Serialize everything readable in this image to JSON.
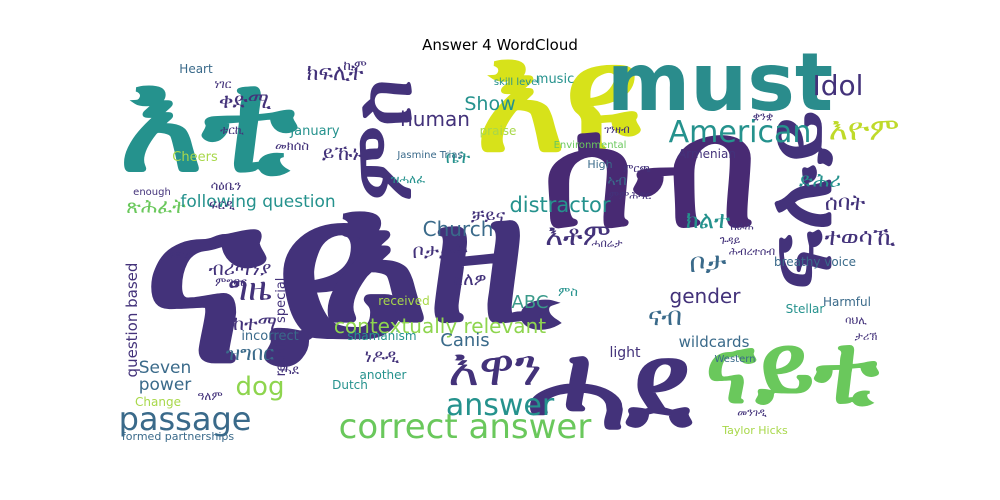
{
  "chart_data": {
    "type": "wordcloud",
    "title": "Answer 4 WordCloud",
    "words": [
      {
        "text": "ናይ",
        "rank": 1,
        "color": "#43327a"
      },
      {
        "text": "እዩ",
        "rank": 2,
        "color": "#d7e21a"
      },
      {
        "text": "እቲ",
        "rank": 3,
        "color": "#25928d"
      },
      {
        "text": "ሰብ",
        "rank": 4,
        "color": "#482a73"
      },
      {
        "text": "እዚ",
        "rank": 5,
        "color": "#43327a"
      },
      {
        "text": "ሓደ",
        "rank": 6,
        "color": "#43327a"
      },
      {
        "text": "ናይቲ",
        "rank": 7,
        "color": "#6ac85c"
      },
      {
        "text": "ምስ",
        "rank": 8,
        "color": "#43327a"
      },
      {
        "text": "must",
        "rank": 9,
        "color": "#2a8c8c"
      },
      {
        "text": "ፍሉይ",
        "rank": 10,
        "color": "#43327a"
      },
      {
        "text": "correct answer",
        "rank": 11,
        "color": "#6ac85c"
      },
      {
        "text": "American",
        "rank": 12,
        "color": "#25928d"
      },
      {
        "text": "እዋን",
        "rank": 13,
        "color": "#43327a"
      },
      {
        "text": "answer",
        "rank": 14,
        "color": "#25928d"
      },
      {
        "text": "passage",
        "rank": 15,
        "color": "#3a6a8a"
      },
      {
        "text": "Idol",
        "rank": 16,
        "color": "#43327a"
      },
      {
        "text": "እዮም",
        "rank": 17,
        "color": "#bfda2a"
      },
      {
        "text": "ግዜ",
        "rank": 18,
        "color": "#43327a"
      },
      {
        "text": "dog",
        "rank": 19,
        "color": "#8ed54e"
      },
      {
        "text": "እቶም",
        "rank": 20,
        "color": "#43327a"
      },
      {
        "text": "contextually relevant",
        "rank": 21,
        "color": "#8ed54e"
      },
      {
        "text": "Church",
        "rank": 22,
        "color": "#3a6a8a"
      },
      {
        "text": "human",
        "rank": 23,
        "color": "#43327a"
      },
      {
        "text": "distractor",
        "rank": 24,
        "color": "#25928d"
      },
      {
        "text": "gender",
        "rank": 25,
        "color": "#43327a"
      },
      {
        "text": "Seven",
        "rank": 26,
        "color": "#3a6a8a"
      },
      {
        "text": "power",
        "rank": 27,
        "color": "#3a6a8a"
      },
      {
        "text": "Show",
        "rank": 28,
        "color": "#25928d"
      },
      {
        "text": "ABC",
        "rank": 29,
        "color": "#3a9a8a"
      },
      {
        "text": "Canis",
        "rank": 30,
        "color": "#3a6a8a"
      },
      {
        "text": "ቀድሚ",
        "rank": 31,
        "color": "#43327a"
      },
      {
        "text": "ክፍሊት",
        "rank": 32,
        "color": "#43327a"
      },
      {
        "text": "ኪም",
        "rank": 33,
        "color": "#43327a"
      },
      {
        "text": "ይኹኑ",
        "rank": 34,
        "color": "#43327a"
      },
      {
        "text": "ቤት",
        "rank": 35,
        "color": "#25928d"
      },
      {
        "text": "ቻይና",
        "rank": 36,
        "color": "#43327a"
      },
      {
        "text": "ቦታታት",
        "rank": 37,
        "color": "#43327a"
      },
      {
        "text": "ዘለዎ",
        "rank": 38,
        "color": "#43327a"
      },
      {
        "text": "ብሪጣንያ",
        "rank": 39,
        "color": "#43327a"
      },
      {
        "text": "ከተማ",
        "rank": 40,
        "color": "#43327a"
      },
      {
        "text": "ዝግበር",
        "rank": 41,
        "color": "#3a6a8a"
      },
      {
        "text": "ነዶዲ",
        "rank": 42,
        "color": "#43327a"
      },
      {
        "text": "ቦታ",
        "rank": 43,
        "color": "#3a6a8a"
      },
      {
        "text": "ናብ",
        "rank": 44,
        "color": "#3a6a8a"
      },
      {
        "text": "ክልተ",
        "rank": 45,
        "color": "#25928d"
      },
      {
        "text": "ተወሳኺ",
        "rank": 46,
        "color": "#43327a"
      },
      {
        "text": "ሰባት",
        "rank": 47,
        "color": "#43327a"
      },
      {
        "text": "ድሕሪ",
        "rank": 48,
        "color": "#25928d"
      },
      {
        "text": "ጽሕፈት",
        "rank": 49,
        "color": "#6ac85c"
      },
      {
        "text": "following question",
        "rank": 50,
        "color": "#25928d"
      },
      {
        "text": "January",
        "rank": 51,
        "color": "#25928d"
      },
      {
        "text": "question based",
        "rank": 52,
        "color": "#43327a"
      },
      {
        "text": "reunion special",
        "rank": 53,
        "color": "#43327a"
      },
      {
        "text": "incorrect",
        "rank": 54,
        "color": "#3a6a8a"
      },
      {
        "text": "shamanism",
        "rank": 55,
        "color": "#25928d"
      },
      {
        "text": "received",
        "rank": 56,
        "color": "#a8d84a"
      },
      {
        "text": "Dutch",
        "rank": 57,
        "color": "#25928d"
      },
      {
        "text": "another",
        "rank": 58,
        "color": "#25928d"
      },
      {
        "text": "light",
        "rank": 59,
        "color": "#43327a"
      },
      {
        "text": "wildcards",
        "rank": 60,
        "color": "#3a6a8a"
      },
      {
        "text": "Armenian",
        "rank": 61,
        "color": "#43327a"
      },
      {
        "text": "music",
        "rank": 62,
        "color": "#25928d"
      },
      {
        "text": "praise",
        "rank": 63,
        "color": "#a8d84a"
      },
      {
        "text": "Heart",
        "rank": 64,
        "color": "#3a6a8a"
      },
      {
        "text": "Cheers",
        "rank": 65,
        "color": "#a8d84a"
      },
      {
        "text": "Harmful",
        "rank": 66,
        "color": "#3a6a8a"
      },
      {
        "text": "breathy voice",
        "rank": 67,
        "color": "#3a6a8a"
      },
      {
        "text": "Stellar",
        "rank": 68,
        "color": "#25928d"
      },
      {
        "text": "Change",
        "rank": 69,
        "color": "#a8d84a"
      },
      {
        "text": "formed partnerships",
        "rank": 70,
        "color": "#3a6a8a"
      },
      {
        "text": "Taylor Hicks",
        "rank": 71,
        "color": "#a8d84a"
      },
      {
        "text": "Jasmine Trias",
        "rank": 72,
        "color": "#3a6a8a"
      },
      {
        "text": "skill level",
        "rank": 73,
        "color": "#25928d"
      },
      {
        "text": "High",
        "rank": 74,
        "color": "#3a6a8a"
      },
      {
        "text": "Environmental",
        "rank": 75,
        "color": "#6ac85c"
      },
      {
        "text": "Western",
        "rank": 76,
        "color": "#3a6a8a"
      },
      {
        "text": "enough",
        "rank": 77,
        "color": "#43327a"
      },
      {
        "text": "መክሰስ",
        "rank": 78,
        "color": "#43327a"
      },
      {
        "text": "ኣብ",
        "rank": 79,
        "color": "#3a6a8a"
      },
      {
        "text": "ሓደ",
        "rank": 80,
        "color": "#43327a"
      },
      {
        "text": "ዝሓለፈ",
        "rank": 81,
        "color": "#25928d"
      },
      {
        "text": "ነገር",
        "rank": 82,
        "color": "#43327a"
      },
      {
        "text": "ምስ",
        "rank": 83,
        "color": "#25928d"
      },
      {
        "text": "ቱርኪ",
        "rank": 84,
        "color": "#43327a"
      },
      {
        "text": "ሳዕቤን",
        "rank": 85,
        "color": "#43327a"
      },
      {
        "text": "ፍርዲ",
        "rank": 86,
        "color": "#43327a"
      },
      {
        "text": "ቁጽሪ",
        "rank": 87,
        "color": "#43327a"
      },
      {
        "text": "ዓለም",
        "rank": 88,
        "color": "#43327a"
      },
      {
        "text": "ምግባር",
        "rank": 89,
        "color": "#43327a"
      },
      {
        "text": "ጉዳይ",
        "rank": 90,
        "color": "#43327a"
      },
      {
        "text": "ስራሕ",
        "rank": 91,
        "color": "#43327a"
      },
      {
        "text": "ገንዘብ",
        "rank": 92,
        "color": "#43327a"
      },
      {
        "text": "ሓበሬታ",
        "rank": 93,
        "color": "#43327a"
      },
      {
        "text": "ምርጫ",
        "rank": 94,
        "color": "#43327a"
      },
      {
        "text": "መንገዲ",
        "rank": 95,
        "color": "#43327a"
      },
      {
        "text": "ቋንቋ",
        "rank": 96,
        "color": "#43327a"
      },
      {
        "text": "ባህሊ",
        "rank": 97,
        "color": "#43327a"
      },
      {
        "text": "ታሪኽ",
        "rank": 98,
        "color": "#43327a"
      },
      {
        "text": "ሕብረተሰብ",
        "rank": 99,
        "color": "#43327a"
      },
      {
        "text": "ምምሕዳር",
        "rank": 100,
        "color": "#43327a"
      }
    ]
  }
}
